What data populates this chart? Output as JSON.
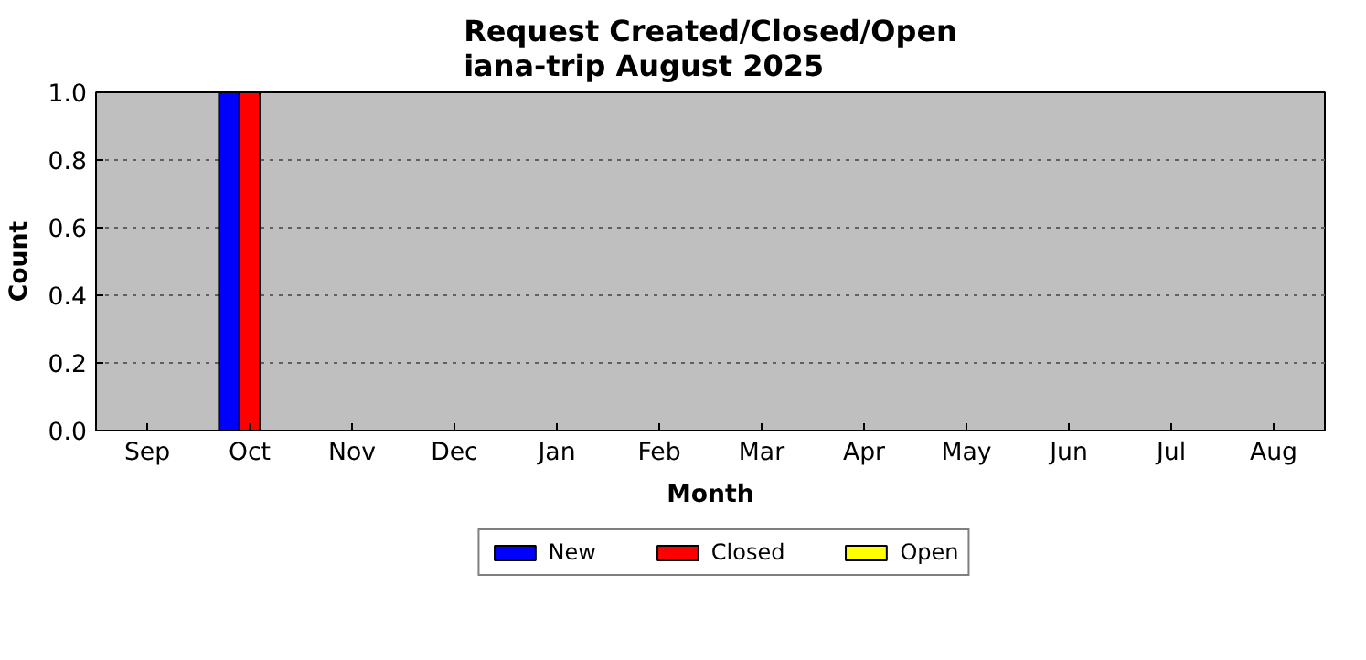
{
  "chart_data": {
    "type": "bar",
    "title": "Request Created/Closed/Open\niana-trip August 2025",
    "xlabel": "Month",
    "ylabel": "Count",
    "categories": [
      "Sep",
      "Oct",
      "Nov",
      "Dec",
      "Jan",
      "Feb",
      "Mar",
      "Apr",
      "May",
      "Jun",
      "Jul",
      "Aug"
    ],
    "series": [
      {
        "name": "New",
        "color": "#0000ff",
        "values": [
          0,
          1,
          0,
          0,
          0,
          0,
          0,
          0,
          0,
          0,
          0,
          0
        ]
      },
      {
        "name": "Closed",
        "color": "#ff0000",
        "values": [
          0,
          1,
          0,
          0,
          0,
          0,
          0,
          0,
          0,
          0,
          0,
          0
        ]
      },
      {
        "name": "Open",
        "color": "#ffff00",
        "values": [
          0,
          0,
          0,
          0,
          0,
          0,
          0,
          0,
          0,
          0,
          0,
          0
        ]
      }
    ],
    "ylim": [
      0,
      1
    ],
    "yticks": [
      {
        "value": 0,
        "label": "0.0"
      },
      {
        "value": 0.2,
        "label": "0.2"
      },
      {
        "value": 0.4,
        "label": "0.4"
      },
      {
        "value": 0.6,
        "label": "0.6"
      },
      {
        "value": 0.8,
        "label": "0.8"
      },
      {
        "value": 1,
        "label": "1.0"
      }
    ],
    "grid": "y",
    "legend": "bottom"
  }
}
